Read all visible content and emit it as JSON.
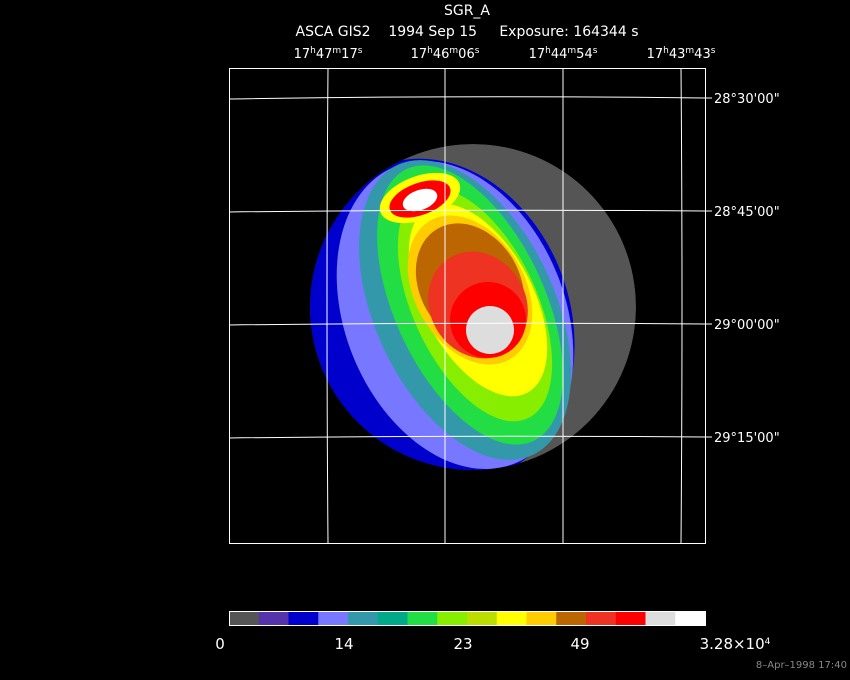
{
  "title": "SGR_A",
  "subtitle": "ASCA GIS2    1994 Sep 15     Exposure: 164344 s",
  "ra_labels": [
    [
      "17",
      "h",
      "47",
      "m",
      "17",
      "s"
    ],
    [
      "17",
      "h",
      "46",
      "m",
      "06",
      "s"
    ],
    [
      "17",
      "h",
      "44",
      "m",
      "54",
      "s"
    ],
    [
      "17",
      "h",
      "43",
      "m",
      "43",
      "s"
    ]
  ],
  "dec_labels": [
    "28°30'00\"",
    "28°45'00\"",
    "29°00'00\"",
    "29°15'00\""
  ],
  "colorbar": {
    "colors": [
      "#555555",
      "#5533aa",
      "#0000cc",
      "#7777ff",
      "#3399aa",
      "#00aa88",
      "#22dd44",
      "#88ee00",
      "#bbdd00",
      "#ffff00",
      "#ffcc00",
      "#bb6600",
      "#ee3322",
      "#ff0000",
      "#dddddd",
      "#ffffff"
    ],
    "labels": [
      [
        "0"
      ],
      [
        "14"
      ],
      [
        "23"
      ],
      [
        "49"
      ],
      [
        "3.28×10",
        "4"
      ]
    ]
  },
  "timestamp": "8–Apr–1998 17:40"
}
